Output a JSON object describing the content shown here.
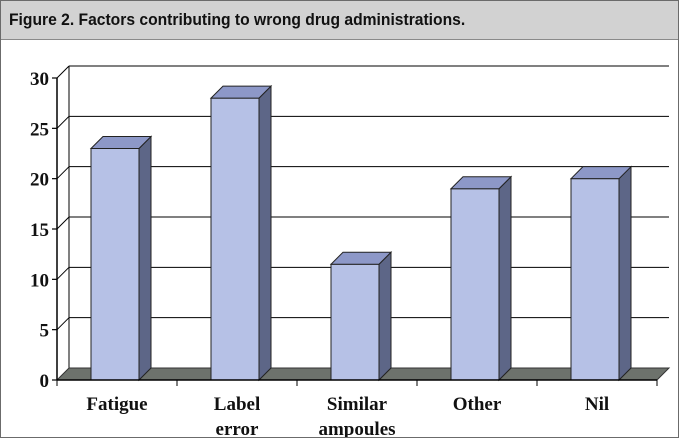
{
  "header": {
    "title": "Figure 2. Factors contributing to wrong drug administrations."
  },
  "colors": {
    "bar_front": "#b6c1e6",
    "bar_side": "#5d6687",
    "bar_top": "#8d98c8",
    "floor": "#6d726c",
    "gridline": "#000000",
    "title_bg": "#d2d2d2"
  },
  "chart_data": {
    "type": "bar",
    "style": "3d-column",
    "title": "Figure 2. Factors contributing to wrong drug administrations.",
    "categories": [
      "Fatigue",
      "Label error",
      "Similar ampoules",
      "Other",
      "Nil"
    ],
    "category_lines": [
      [
        "Fatigue"
      ],
      [
        "Label",
        "error"
      ],
      [
        "Similar",
        "ampoules"
      ],
      [
        "Other"
      ],
      [
        "Nil"
      ]
    ],
    "values": [
      23,
      28,
      11.5,
      19,
      20
    ],
    "ylim": [
      0,
      30
    ],
    "yticks": [
      0,
      5,
      10,
      15,
      20,
      25,
      30
    ],
    "xlabel": "",
    "ylabel": "",
    "grid": true,
    "legend": "none"
  }
}
